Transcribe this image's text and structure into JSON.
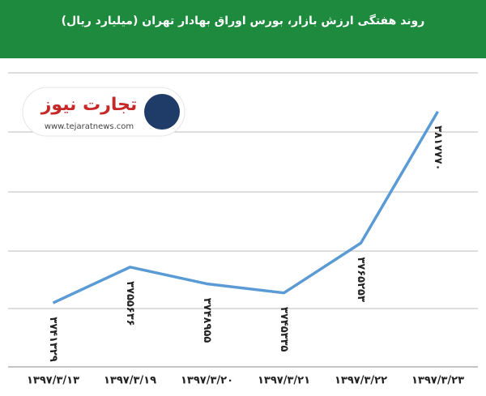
{
  "chart_data": {
    "type": "line",
    "title": "روند هفتگی ارزش بازار، بورس اوراق بهادار تهران (میلیارد ریال)",
    "categories": [
      "۱۳۹۷/۳/۱۳",
      "۱۳۹۷/۳/۱۹",
      "۱۳۹۷/۳/۲۰",
      "۱۳۹۷/۳/۲۱",
      "۱۳۹۷/۳/۲۲",
      "۱۳۹۷/۳/۲۳"
    ],
    "values": [
      3741329,
      3755636,
      3748955,
      3745335,
      3765253,
      3817770
    ],
    "value_labels": [
      "۳۷۴۱۳۲۹",
      "۳۷۵۵۶۳۶",
      "۳۷۴۸۹۵۵",
      "۳۷۴۵۳۳۵",
      "۳۷۶۵۲۵۳",
      "۳۸۱۷۷۷۰"
    ],
    "color": "#5b9bd5",
    "ylim": [
      3720000,
      3830000
    ],
    "logo": {
      "name": "تجارت نیوز",
      "site": "www.tejaratnews.com"
    }
  }
}
